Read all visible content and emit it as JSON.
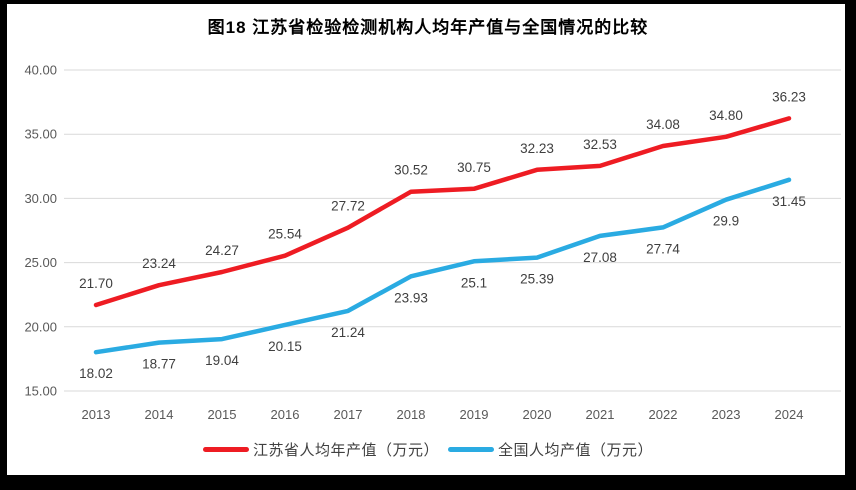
{
  "chart_data": {
    "type": "line",
    "title": "图18  江苏省检验检测机构人均年产值与全国情况的比较",
    "categories": [
      "2013",
      "2014",
      "2015",
      "2016",
      "2017",
      "2018",
      "2019",
      "2020",
      "2021",
      "2022",
      "2023",
      "2024"
    ],
    "series": [
      {
        "name": "江苏省人均年产值（万元）",
        "color": "#ee1c23",
        "values": [
          21.7,
          23.24,
          24.27,
          25.54,
          27.72,
          30.52,
          30.75,
          32.23,
          32.53,
          34.08,
          34.8,
          36.23
        ],
        "labels": [
          "21.70",
          "23.24",
          "24.27",
          "25.54",
          "27.72",
          "30.52",
          "30.75",
          "32.23",
          "32.53",
          "34.08",
          "34.80",
          "36.23"
        ],
        "label_position": "above"
      },
      {
        "name": "全国人均产值（万元）",
        "color": "#2aabe2",
        "values": [
          18.02,
          18.77,
          19.04,
          20.15,
          21.24,
          23.93,
          25.1,
          25.39,
          27.08,
          27.74,
          29.9,
          31.45
        ],
        "labels": [
          "18.02",
          "18.77",
          "19.04",
          "20.15",
          "21.24",
          "23.93",
          "25.1",
          "25.39",
          "27.08",
          "27.74",
          "29.9",
          "31.45"
        ],
        "label_position": "below"
      }
    ],
    "ylim": [
      15,
      40
    ],
    "y_tick_step": 5,
    "y_ticks": [
      "15.00",
      "20.00",
      "25.00",
      "30.00",
      "35.00",
      "40.00"
    ],
    "grid": "horizontal",
    "legend_position": "bottom"
  },
  "styles": {
    "background": "#ffffff",
    "frame_color": "#000000",
    "grid_color": "#d9d9d9",
    "tick_label_color": "#595959",
    "data_label_color": "#3f3f3f",
    "legend_text_color": "#404040",
    "title_color": "#000000"
  }
}
